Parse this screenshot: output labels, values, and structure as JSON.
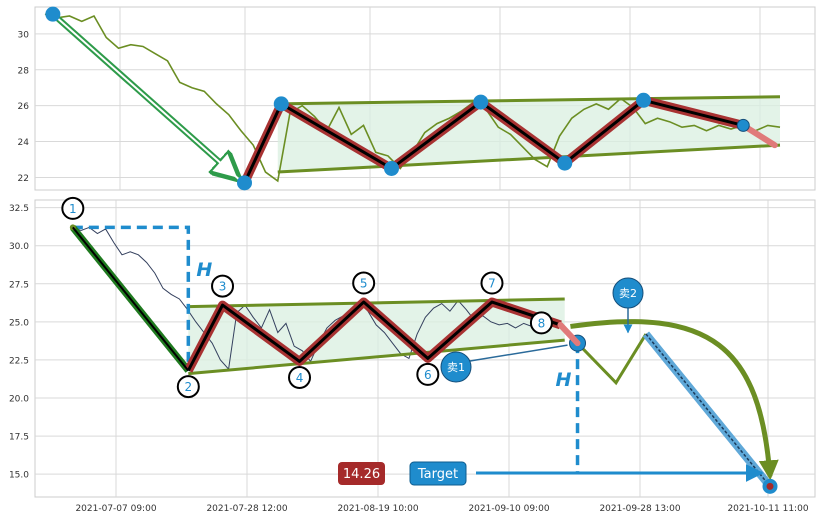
{
  "colors": {
    "grid": "#d9d9d9",
    "price_top": "#6b8e23",
    "price_bottom": "#34405e",
    "trend": "#6b8e23",
    "wave_outer": "#a83232",
    "wave_inner": "#000000",
    "node": "#1f8ccd",
    "blue": "#1f8ccd",
    "green_arrow": "#2e9b4a",
    "fill": "#d9efe0",
    "target_box": "#1f8ccd",
    "value_box": "#a52a2a"
  },
  "chart_data": [
    {
      "type": "line",
      "panel": "top",
      "ylim": [
        21.3,
        31.5
      ],
      "yticks": [
        22,
        24,
        26,
        28,
        30
      ],
      "x": [
        0,
        120
      ],
      "series": [
        {
          "role": "price",
          "x": [
            0,
            2,
            4,
            6,
            8,
            10,
            12,
            14,
            16,
            18,
            20,
            22,
            24,
            26,
            28,
            30,
            32,
            34,
            36,
            38,
            40,
            42,
            44,
            46,
            48,
            50,
            52,
            54,
            56,
            58,
            60,
            62,
            64,
            66,
            68,
            70,
            72,
            74,
            76,
            78,
            80,
            82,
            84,
            86,
            88,
            90,
            92,
            94,
            96,
            98,
            100,
            102,
            104,
            106,
            108,
            110,
            112,
            114,
            116,
            118,
            120
          ],
          "y": [
            31.1,
            30.9,
            31.0,
            30.7,
            31.0,
            29.8,
            29.2,
            29.4,
            29.3,
            28.9,
            28.5,
            27.3,
            27.0,
            26.8,
            26.1,
            25.5,
            24.6,
            23.8,
            22.3,
            21.8,
            25.6,
            26.0,
            25.4,
            24.6,
            25.9,
            24.4,
            24.9,
            23.4,
            23.2,
            22.5,
            23.4,
            24.5,
            25.0,
            25.3,
            25.7,
            26.2,
            25.8,
            24.8,
            24.4,
            23.7,
            23.0,
            22.6,
            24.3,
            25.3,
            25.8,
            26.1,
            25.8,
            26.4,
            25.9,
            25.0,
            25.3,
            25.1,
            24.8,
            24.9,
            24.6,
            24.9,
            24.7,
            24.9,
            24.6,
            24.9,
            24.8
          ]
        }
      ],
      "trendlines": {
        "upper": [
          [
            38,
            26.1
          ],
          [
            120,
            26.5
          ]
        ],
        "lower": [
          [
            38,
            22.3
          ],
          [
            120,
            23.8
          ]
        ]
      },
      "wave_points": [
        [
          1.5,
          31.1
        ],
        [
          38,
          21.7
        ],
        [
          45,
          26.1
        ],
        [
          66,
          22.5
        ],
        [
          83,
          26.2
        ],
        [
          99,
          22.8
        ],
        [
          114,
          26.3
        ],
        [
          133,
          24.9
        ],
        [
          139,
          23.8
        ]
      ]
    },
    {
      "type": "line",
      "panel": "bottom",
      "ylim": [
        13.5,
        33.0
      ],
      "yticks": [
        15.0,
        17.5,
        20.0,
        22.5,
        25.0,
        27.5,
        30.0,
        32.5
      ],
      "xtick_labels": [
        "2021-07-07 09:00",
        "2021-07-28 12:00",
        "2021-08-19 10:00",
        "2021-09-10 09:00",
        "2021-09-28 13:00",
        "2021-10-11 11:00"
      ],
      "series": [
        {
          "role": "price",
          "y": [
            31.2,
            31.0,
            31.2,
            30.8,
            31.1,
            30.2,
            29.4,
            29.6,
            29.4,
            28.9,
            28.2,
            27.2,
            26.8,
            26.5,
            25.8,
            25.0,
            24.3,
            23.6,
            22.5,
            21.9,
            25.6,
            26.1,
            25.3,
            24.6,
            25.8,
            24.3,
            24.9,
            23.4,
            23.1,
            22.4,
            23.6,
            24.6,
            25.1,
            25.4,
            25.8,
            26.3,
            25.7,
            24.8,
            24.3,
            23.6,
            22.9,
            22.6,
            24.2,
            25.3,
            25.9,
            26.2,
            25.7,
            26.4,
            25.8,
            25.1,
            25.4,
            25.0,
            24.8,
            24.9,
            24.6,
            24.9,
            24.7,
            24.9,
            24.6,
            24.8,
            24.7
          ]
        }
      ],
      "trendlines": {
        "upper": [
          [
            30,
            26.0
          ],
          [
            118,
            26.5
          ]
        ],
        "lower": [
          [
            30,
            21.6
          ],
          [
            118,
            23.8
          ]
        ]
      },
      "wave_points": [
        [
          3,
          31.2
        ],
        [
          30,
          21.8
        ],
        [
          38,
          26.1
        ],
        [
          56,
          22.4
        ],
        [
          71,
          26.3
        ],
        [
          86,
          22.6
        ],
        [
          101,
          26.3
        ],
        [
          117,
          24.8
        ],
        [
          121,
          23.6
        ]
      ],
      "wave_labels": [
        "1",
        "2",
        "3",
        "4",
        "5",
        "6",
        "7",
        "8"
      ],
      "projection": [
        [
          121,
          23.6
        ],
        [
          130,
          21.0
        ],
        [
          137,
          24.2
        ],
        [
          166,
          14.2
        ]
      ],
      "target_value": "14.26",
      "target_label": "Target",
      "sell_labels": [
        "卖1",
        "卖2"
      ],
      "height_label": "H"
    }
  ]
}
